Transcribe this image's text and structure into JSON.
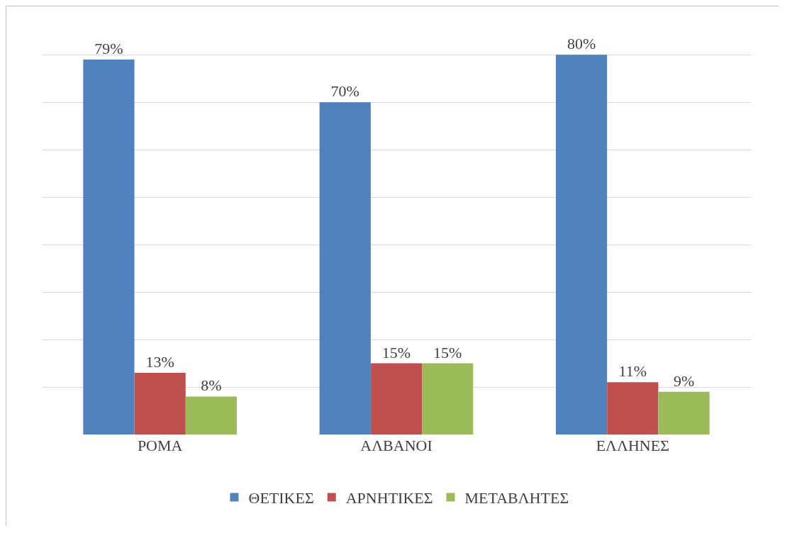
{
  "chart_data": {
    "type": "bar",
    "categories": [
      "ΡΟΜΑ",
      "ΑΛΒΑΝΟΙ",
      "ΕΛΛΗΝΕΣ"
    ],
    "series": [
      {
        "name": "ΘΕΤΙΚΕΣ",
        "color": "#4f81bd",
        "values": [
          79,
          70,
          80
        ],
        "value_labels": [
          "79%",
          "70%",
          "80%"
        ]
      },
      {
        "name": "ΑΡΝΗΤΙΚΕΣ",
        "color": "#c0504d",
        "values": [
          13,
          15,
          11
        ],
        "value_labels": [
          "13%",
          "15%",
          "11%"
        ]
      },
      {
        "name": "ΜΕΤΑΒΛΗΤΕΣ",
        "color": "#9bbb59",
        "values": [
          8,
          15,
          9
        ],
        "value_labels": [
          "8%",
          "15%",
          "9%"
        ]
      }
    ],
    "tick_labels": "x",
    "grid": "y",
    "legend": "bottom"
  }
}
